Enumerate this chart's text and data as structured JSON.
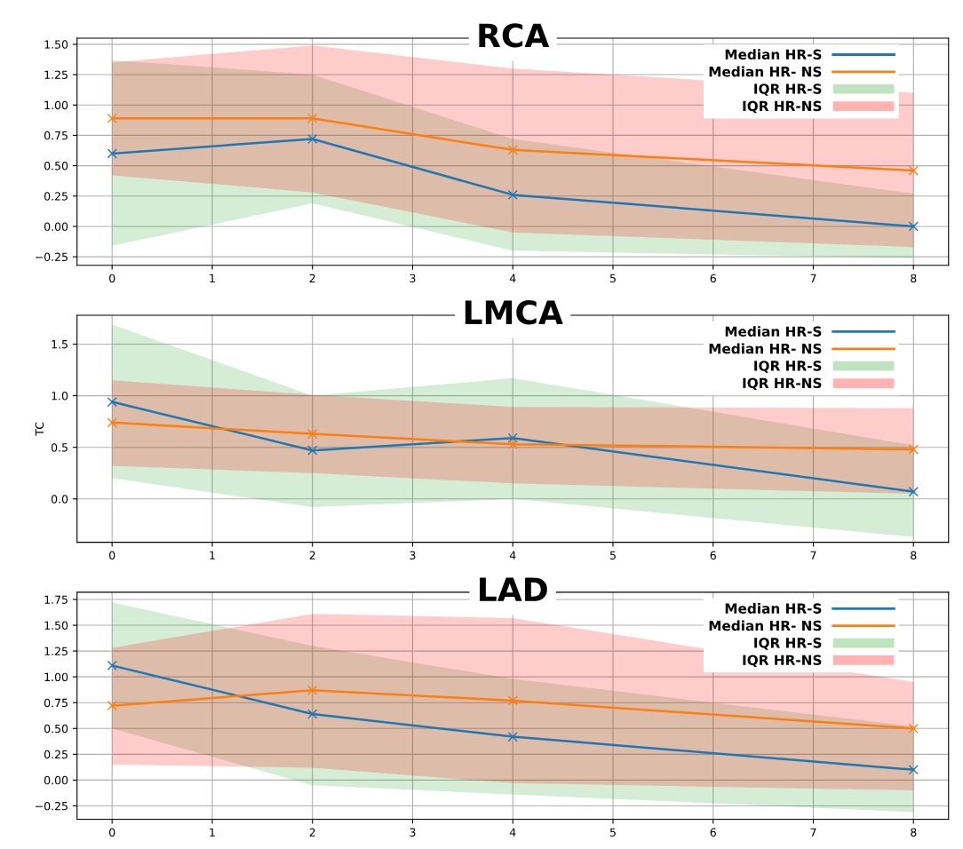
{
  "chart_data": [
    {
      "type": "line",
      "title": "RCA",
      "x": [
        0,
        2,
        4,
        8
      ],
      "xlim": [
        -0.35,
        8.35
      ],
      "xticks": [
        0,
        1,
        2,
        3,
        4,
        5,
        6,
        7,
        8
      ],
      "ylim": [
        -0.32,
        1.55
      ],
      "yticks": [
        {
          "value": -0.25,
          "label": "−0.25"
        },
        {
          "value": 0,
          "label": "0.00"
        },
        {
          "value": 0.25,
          "label": "0.25"
        },
        {
          "value": 0.5,
          "label": "0.50"
        },
        {
          "value": 0.75,
          "label": "0.75"
        },
        {
          "value": 1.0,
          "label": "1.00"
        },
        {
          "value": 1.25,
          "label": "1.25"
        },
        {
          "value": 1.5,
          "label": "1.50"
        }
      ],
      "grid": true,
      "legend": "top right",
      "marker": "cross",
      "series": [
        {
          "name": "Median HR-S",
          "type": "line",
          "color": "#1f77b4",
          "values": [
            0.6,
            0.72,
            0.26,
            0.0
          ]
        },
        {
          "name": "Median HR- NS",
          "type": "line",
          "color": "#ff7f0e",
          "values": [
            0.89,
            0.89,
            0.63,
            0.46
          ]
        },
        {
          "name": "IQR HR-S",
          "type": "line",
          "color": "#2ca02c",
          "values": [
            null,
            null,
            null,
            null
          ],
          "lower": [
            -0.16,
            0.19,
            -0.2,
            -0.26
          ],
          "upper": [
            1.37,
            1.25,
            0.72,
            0.27
          ]
        },
        {
          "name": "IQR HR-NS",
          "type": "line",
          "color": "#ff0000",
          "values": [
            null,
            null,
            null,
            null
          ],
          "lower": [
            0.42,
            0.28,
            -0.05,
            -0.17
          ],
          "upper": [
            1.35,
            1.49,
            1.3,
            1.1
          ]
        }
      ]
    },
    {
      "type": "line",
      "title": "LMCA",
      "ylabel": "TC",
      "x": [
        0,
        2,
        4,
        8
      ],
      "xlim": [
        -0.35,
        8.35
      ],
      "xticks": [
        0,
        1,
        2,
        3,
        4,
        5,
        6,
        7,
        8
      ],
      "ylim": [
        -0.42,
        1.78
      ],
      "yticks": [
        {
          "value": 0,
          "label": "0.0"
        },
        {
          "value": 0.5,
          "label": "0.5"
        },
        {
          "value": 1.0,
          "label": "1.0"
        },
        {
          "value": 1.5,
          "label": "1.5"
        }
      ],
      "grid": true,
      "legend": "top right",
      "marker": "cross",
      "series": [
        {
          "name": "Median HR-S",
          "type": "line",
          "color": "#1f77b4",
          "values": [
            0.94,
            0.47,
            0.59,
            0.07
          ]
        },
        {
          "name": "Median HR- NS",
          "type": "line",
          "color": "#ff7f0e",
          "values": [
            0.74,
            0.63,
            0.53,
            0.48
          ]
        },
        {
          "name": "IQR HR-S",
          "type": "line",
          "color": "#2ca02c",
          "values": [
            null,
            null,
            null,
            null
          ],
          "lower": [
            0.2,
            -0.08,
            0.0,
            -0.37
          ],
          "upper": [
            1.69,
            1.0,
            1.17,
            0.52
          ]
        },
        {
          "name": "IQR HR-NS",
          "type": "line",
          "color": "#ff0000",
          "values": [
            null,
            null,
            null,
            null
          ],
          "lower": [
            0.32,
            0.25,
            0.15,
            0.05
          ],
          "upper": [
            1.15,
            1.01,
            0.89,
            0.88
          ]
        }
      ]
    },
    {
      "type": "line",
      "title": "LAD",
      "x": [
        0,
        2,
        4,
        8
      ],
      "xlim": [
        -0.35,
        8.35
      ],
      "xticks": [
        0,
        1,
        2,
        3,
        4,
        5,
        6,
        7,
        8
      ],
      "ylim": [
        -0.38,
        1.82
      ],
      "yticks": [
        {
          "value": -0.25,
          "label": "−0.25"
        },
        {
          "value": 0,
          "label": "0.00"
        },
        {
          "value": 0.25,
          "label": "0.25"
        },
        {
          "value": 0.5,
          "label": "0.50"
        },
        {
          "value": 0.75,
          "label": "0.75"
        },
        {
          "value": 1.0,
          "label": "1.00"
        },
        {
          "value": 1.25,
          "label": "1.25"
        },
        {
          "value": 1.5,
          "label": "1.50"
        },
        {
          "value": 1.75,
          "label": "1.75"
        }
      ],
      "grid": true,
      "legend": "top right",
      "marker": "cross",
      "series": [
        {
          "name": "Median HR-S",
          "type": "line",
          "color": "#1f77b4",
          "values": [
            1.11,
            0.64,
            0.42,
            0.1
          ]
        },
        {
          "name": "Median HR- NS",
          "type": "line",
          "color": "#ff7f0e",
          "values": [
            0.72,
            0.87,
            0.77,
            0.5
          ]
        },
        {
          "name": "IQR HR-S",
          "type": "line",
          "color": "#2ca02c",
          "values": [
            null,
            null,
            null,
            null
          ],
          "lower": [
            0.5,
            -0.05,
            -0.14,
            -0.31
          ],
          "upper": [
            1.72,
            1.3,
            0.98,
            0.52
          ]
        },
        {
          "name": "IQR HR-NS",
          "type": "line",
          "color": "#ff0000",
          "values": [
            null,
            null,
            null,
            null
          ],
          "lower": [
            0.15,
            0.12,
            -0.03,
            -0.1
          ],
          "upper": [
            1.28,
            1.61,
            1.57,
            0.95
          ]
        }
      ]
    }
  ]
}
